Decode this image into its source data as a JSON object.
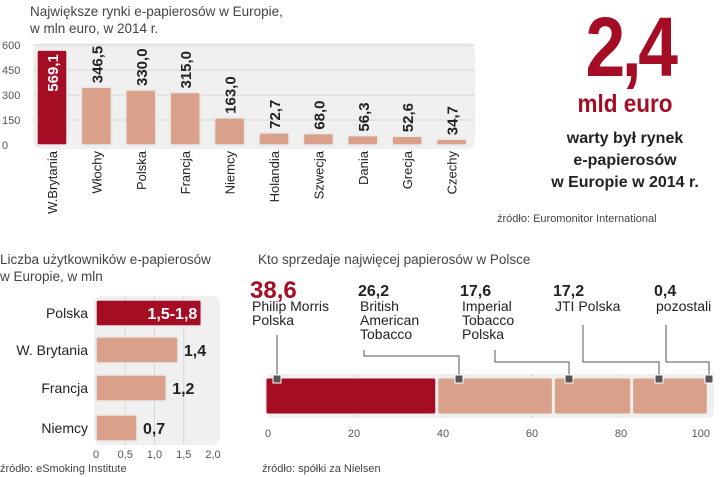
{
  "headline": {
    "value": "2,4",
    "unit": "mld euro",
    "description_lines": [
      "warty był rynek",
      "e-papierosów",
      "w Europie w 2014 r."
    ],
    "source": "źródło: Euromonitor International"
  },
  "colors": {
    "highlight": "#a50d25",
    "bar": "#d9a08a",
    "panel": "#f0f0f0",
    "text": "#222222"
  },
  "chart_data": [
    {
      "type": "bar",
      "title_lines": [
        "Największe rynki e-papierosów w Europie,",
        "w mln euro, w 2014 r."
      ],
      "categories": [
        "W.Brytania",
        "Włochy",
        "Polska",
        "Francja",
        "Niemcy",
        "Holandia",
        "Szwecja",
        "Dania",
        "Grecja",
        "Czechy"
      ],
      "values": [
        569.1,
        346.5,
        330.0,
        315.0,
        163.0,
        72.7,
        68.0,
        56.3,
        52.6,
        34.7
      ],
      "value_labels": [
        "569,1",
        "346,5",
        "330,0",
        "315,0",
        "163,0",
        "72,7",
        "68,0",
        "56,3",
        "52,6",
        "34,7"
      ],
      "highlight_index": 0,
      "ylim": [
        0,
        600
      ],
      "yticks": [
        "0",
        "150",
        "300",
        "450",
        "600"
      ],
      "ytick_values": [
        0,
        150,
        300,
        450,
        600
      ],
      "grid": true
    },
    {
      "type": "bar",
      "orientation": "horizontal",
      "title_lines": [
        "Liczba użytkowników e-papierosów",
        "w Europie, w mln"
      ],
      "categories": [
        "Polska",
        "W. Brytania",
        "Francja",
        "Niemcy"
      ],
      "values": [
        1.8,
        1.4,
        1.2,
        0.7
      ],
      "value_labels": [
        "1,5-1,8",
        "1,4",
        "1,2",
        "0,7"
      ],
      "highlight_index": 0,
      "xlim": [
        0,
        2.0
      ],
      "xticks": [
        "0",
        "0,5",
        "1,0",
        "1,5",
        "2,0"
      ],
      "xtick_values": [
        0,
        0.5,
        1.0,
        1.5,
        2.0
      ],
      "grid": true,
      "source": "źródło: eSmoking Institute"
    },
    {
      "type": "bar",
      "orientation": "stacked-horizontal",
      "title": "Kto sprzedaje najwięcej papierosów w Polsce",
      "series": [
        {
          "name": "Philip Morris Polska",
          "name_lines": [
            "Philip Morris",
            "Polska"
          ],
          "value": 38.6,
          "label": "38,6"
        },
        {
          "name": "British American Tobacco",
          "name_lines": [
            "British",
            "American",
            "Tobacco"
          ],
          "value": 26.2,
          "label": "26,2"
        },
        {
          "name": "Imperial Tobacco Polska",
          "name_lines": [
            "Imperial",
            "Tobacco",
            "Polska"
          ],
          "value": 17.6,
          "label": "17,6"
        },
        {
          "name": "JTI Polska",
          "name_lines": [
            "JTI Polska"
          ],
          "value": 17.2,
          "label": "17,2"
        },
        {
          "name": "pozostali",
          "name_lines": [
            "pozostali"
          ],
          "value": 0.4,
          "label": "0,4"
        }
      ],
      "highlight_index": 0,
      "xlim": [
        0,
        100
      ],
      "xticks": [
        "0",
        "20",
        "40",
        "60",
        "80",
        "100"
      ],
      "xtick_values": [
        0,
        20,
        40,
        60,
        80,
        100
      ],
      "grid": true,
      "source": "źródło: spółki za Nielsen"
    }
  ]
}
